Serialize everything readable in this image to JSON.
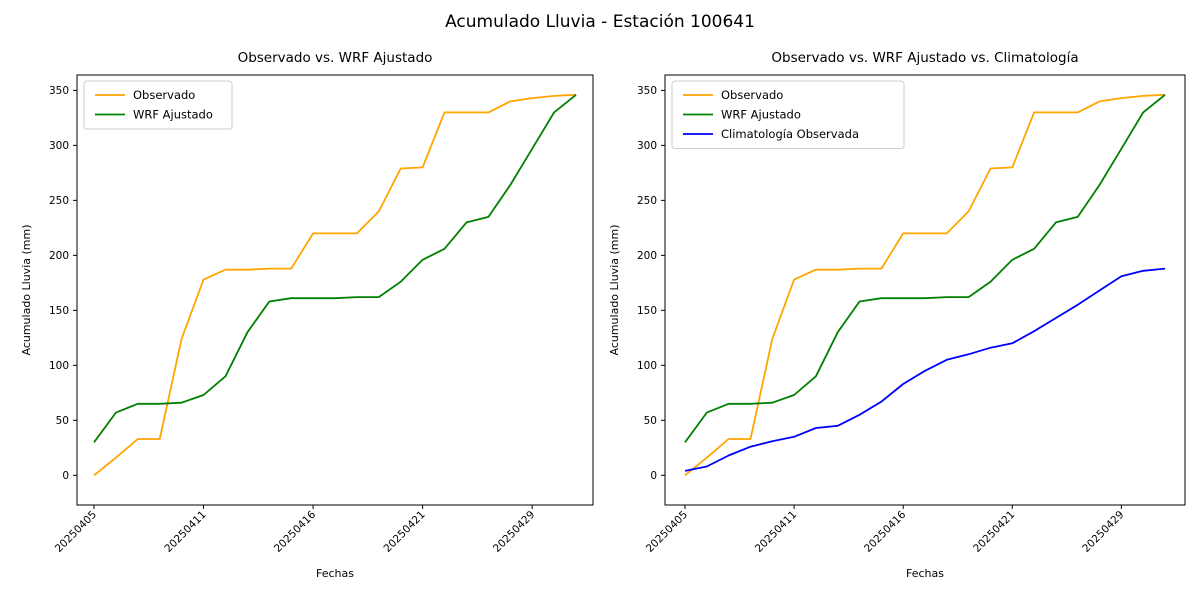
{
  "figure": {
    "title": "Acumulado Lluvia - Estación 100641",
    "background": "#ffffff"
  },
  "chart_data": [
    {
      "type": "line",
      "title": "Observado vs. WRF Ajustado",
      "xlabel": "Fechas",
      "ylabel": "Acumulado Lluvia (mm)",
      "x_tick_positions": [
        0,
        5,
        10,
        15,
        20
      ],
      "x_tick_labels": [
        "20250405",
        "20250411",
        "20250416",
        "20250421",
        "20250429"
      ],
      "y_ticks": [
        0,
        50,
        100,
        150,
        200,
        250,
        300,
        350
      ],
      "ylim": [
        -27,
        364
      ],
      "n_points": 23,
      "grid": false,
      "legend_position": "upper-left",
      "series": [
        {
          "name": "Observado",
          "color": "#FFA500",
          "values": [
            0,
            16,
            33,
            33,
            124,
            178,
            187,
            187,
            188,
            188,
            220,
            220,
            220,
            240,
            279,
            280,
            330,
            330,
            330,
            340,
            343,
            345,
            346
          ]
        },
        {
          "name": "WRF Ajustado",
          "color": "#008000",
          "values": [
            30,
            57,
            65,
            65,
            66,
            73,
            90,
            130,
            158,
            161,
            161,
            161,
            162,
            162,
            176,
            196,
            206,
            230,
            235,
            264,
            297,
            330,
            346
          ]
        }
      ]
    },
    {
      "type": "line",
      "title": "Observado vs. WRF Ajustado vs. Climatología",
      "xlabel": "Fechas",
      "ylabel": "Acumulado Lluvia (mm)",
      "x_tick_positions": [
        0,
        5,
        10,
        15,
        20
      ],
      "x_tick_labels": [
        "20250405",
        "20250411",
        "20250416",
        "20250421",
        "20250429"
      ],
      "y_ticks": [
        0,
        50,
        100,
        150,
        200,
        250,
        300,
        350
      ],
      "ylim": [
        -27,
        364
      ],
      "n_points": 23,
      "grid": false,
      "legend_position": "upper-left",
      "series": [
        {
          "name": "Observado",
          "color": "#FFA500",
          "values": [
            0,
            16,
            33,
            33,
            124,
            178,
            187,
            187,
            188,
            188,
            220,
            220,
            220,
            240,
            279,
            280,
            330,
            330,
            330,
            340,
            343,
            345,
            346
          ]
        },
        {
          "name": "WRF Ajustado",
          "color": "#008000",
          "values": [
            30,
            57,
            65,
            65,
            66,
            73,
            90,
            130,
            158,
            161,
            161,
            161,
            162,
            162,
            176,
            196,
            206,
            230,
            235,
            264,
            297,
            330,
            346
          ]
        },
        {
          "name": "Climatología Observada",
          "color": "#0000FF",
          "values": [
            4,
            8,
            18,
            26,
            31,
            35,
            43,
            45,
            55,
            67,
            83,
            95,
            105,
            110,
            116,
            120,
            131,
            143,
            155,
            168,
            181,
            186,
            188
          ]
        }
      ]
    }
  ]
}
